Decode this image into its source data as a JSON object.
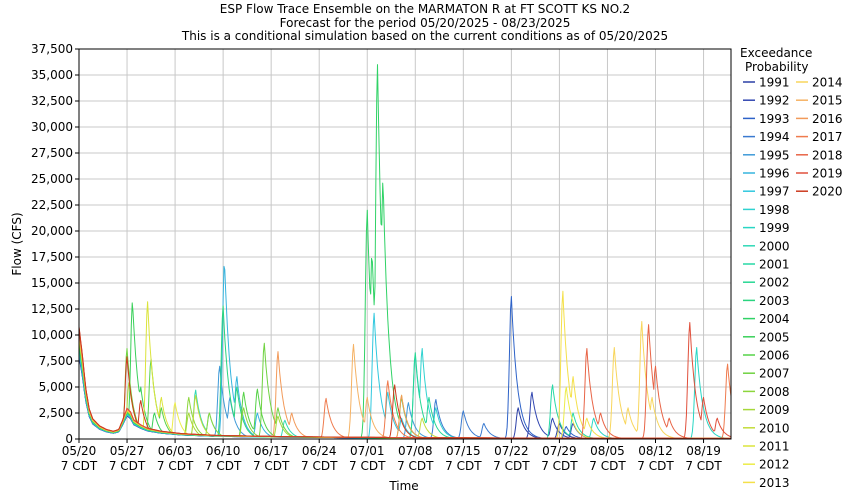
{
  "chart_data": {
    "type": "line",
    "title": "ESP Flow Trace Ensemble on the MARMATON R at FT SCOTT KS NO.2",
    "subtitle": "Forecast for the period 05/20/2025 - 08/23/2025",
    "subtitle2": "This is a conditional simulation based on the current conditions as of 05/20/2025",
    "xlabel": "Time",
    "ylabel": "Flow (CFS)",
    "ylim": [
      0,
      37500
    ],
    "xlim": [
      0,
      95
    ],
    "grid": true,
    "legend_title_1": "Exceedance",
    "legend_title_2": "Probability",
    "legend_position": "right",
    "y_ticks": [
      0,
      2500,
      5000,
      7500,
      10000,
      12500,
      15000,
      17500,
      20000,
      22500,
      25000,
      27500,
      30000,
      32500,
      35000,
      37500
    ],
    "y_tick_labels": [
      "0",
      "2,500",
      "5,000",
      "7,500",
      "10,000",
      "12,500",
      "15,000",
      "17,500",
      "20,000",
      "22,500",
      "25,000",
      "27,500",
      "30,000",
      "32,500",
      "35,000",
      "37,500"
    ],
    "x_ticks": [
      {
        "day": 0,
        "date": "05/20",
        "time": "7 CDT"
      },
      {
        "day": 7,
        "date": "05/27",
        "time": "7 CDT"
      },
      {
        "day": 14,
        "date": "06/03",
        "time": "7 CDT"
      },
      {
        "day": 21,
        "date": "06/10",
        "time": "7 CDT"
      },
      {
        "day": 28,
        "date": "06/17",
        "time": "7 CDT"
      },
      {
        "day": 35,
        "date": "06/24",
        "time": "7 CDT"
      },
      {
        "day": 42,
        "date": "07/01",
        "time": "7 CDT"
      },
      {
        "day": 49,
        "date": "07/08",
        "time": "7 CDT"
      },
      {
        "day": 56,
        "date": "07/15",
        "time": "7 CDT"
      },
      {
        "day": 63,
        "date": "07/22",
        "time": "7 CDT"
      },
      {
        "day": 70,
        "date": "07/29",
        "time": "7 CDT"
      },
      {
        "day": 77,
        "date": "08/05",
        "time": "7 CDT"
      },
      {
        "day": 84,
        "date": "08/12",
        "time": "7 CDT"
      },
      {
        "day": 91,
        "date": "08/19",
        "time": "7 CDT"
      }
    ],
    "base_trace": [
      [
        0,
        9400
      ],
      [
        0.5,
        7000
      ],
      [
        1,
        4200
      ],
      [
        1.5,
        2500
      ],
      [
        2,
        1700
      ],
      [
        3,
        1100
      ],
      [
        4,
        800
      ],
      [
        5,
        650
      ],
      [
        5.8,
        800
      ],
      [
        6.3,
        1500
      ],
      [
        7,
        2600
      ],
      [
        7.5,
        2300
      ],
      [
        8,
        1600
      ],
      [
        9,
        1200
      ],
      [
        10,
        900
      ],
      [
        12,
        650
      ],
      [
        15,
        450
      ],
      [
        20,
        300
      ],
      [
        30,
        200
      ],
      [
        40,
        150
      ],
      [
        50,
        110
      ],
      [
        60,
        90
      ],
      [
        70,
        70
      ],
      [
        80,
        60
      ],
      [
        95,
        50
      ]
    ],
    "series": [
      {
        "name": "1991",
        "color": "#2b3fa6",
        "peaks": [
          [
            64,
            3000
          ],
          [
            70,
            1500
          ]
        ]
      },
      {
        "name": "1992",
        "color": "#3146b0",
        "peaks": [
          [
            66,
            4500
          ],
          [
            69,
            2000
          ],
          [
            72,
            1500
          ]
        ]
      },
      {
        "name": "1993",
        "color": "#2d62c8",
        "peaks": [
          [
            63,
            13700
          ],
          [
            71,
            1200
          ]
        ]
      },
      {
        "name": "1994",
        "color": "#3a7ad0",
        "peaks": [
          [
            52,
            3800
          ],
          [
            56,
            2700
          ],
          [
            59,
            1500
          ]
        ]
      },
      {
        "name": "1995",
        "color": "#3f9ad8",
        "peaks": [
          [
            20.5,
            7000
          ],
          [
            22,
            4000
          ],
          [
            48,
            3500
          ]
        ]
      },
      {
        "name": "1996",
        "color": "#36b4de",
        "peaks": [
          [
            21.2,
            17200
          ],
          [
            23,
            6000
          ],
          [
            26,
            2500
          ]
        ]
      },
      {
        "name": "1997",
        "color": "#30c8de",
        "peaks": [
          [
            43,
            12100
          ],
          [
            45,
            4500
          ],
          [
            47,
            2000
          ]
        ]
      },
      {
        "name": "1998",
        "color": "#2fd2d0",
        "peaks": [
          [
            49,
            8000
          ],
          [
            50,
            8700
          ],
          [
            52,
            3000
          ]
        ]
      },
      {
        "name": "1999",
        "color": "#29d6c4",
        "peaks": [
          [
            90,
            8800
          ],
          [
            91,
            3000
          ],
          [
            75,
            2000
          ]
        ]
      },
      {
        "name": "2000",
        "color": "#2fd8b6",
        "peaks": [
          [
            17,
            4700
          ],
          [
            19,
            2500
          ],
          [
            30,
            1800
          ]
        ]
      },
      {
        "name": "2001",
        "color": "#27d9a6",
        "peaks": [
          [
            69,
            5200
          ],
          [
            72,
            2500
          ]
        ]
      },
      {
        "name": "2002",
        "color": "#27d794",
        "peaks": [
          [
            49,
            8300
          ],
          [
            51,
            4000
          ]
        ]
      },
      {
        "name": "2003",
        "color": "#2ad47f",
        "peaks": [
          [
            21,
            12800
          ],
          [
            23,
            5000
          ]
        ]
      },
      {
        "name": "2004",
        "color": "#30d266",
        "peaks": [
          [
            42,
            22000
          ],
          [
            42.7,
            18000
          ],
          [
            43.5,
            36000
          ],
          [
            44.3,
            25000
          ],
          [
            45,
            8500
          ],
          [
            47,
            4000
          ]
        ]
      },
      {
        "name": "2005",
        "color": "#3ad05a",
        "peaks": [
          [
            7.8,
            13300
          ],
          [
            9,
            5000
          ],
          [
            11,
            2500
          ]
        ]
      },
      {
        "name": "2006",
        "color": "#56d248",
        "peaks": [
          [
            10.5,
            7700
          ],
          [
            12,
            3000
          ],
          [
            24,
            4500
          ],
          [
            26,
            4800
          ]
        ]
      },
      {
        "name": "2007",
        "color": "#6fd240",
        "peaks": [
          [
            7,
            8700
          ],
          [
            27,
            9200
          ],
          [
            29,
            3000
          ]
        ]
      },
      {
        "name": "2008",
        "color": "#8cd63c",
        "peaks": [
          [
            16,
            4000
          ],
          [
            19,
            2500
          ],
          [
            24,
            3000
          ]
        ]
      },
      {
        "name": "2009",
        "color": "#a6d83a",
        "peaks": [
          [
            7.3,
            5500
          ],
          [
            16,
            2500
          ],
          [
            29,
            2200
          ]
        ]
      },
      {
        "name": "2010",
        "color": "#c3dc3a",
        "peaks": [
          [
            17,
            4200
          ],
          [
            47,
            4200
          ],
          [
            50,
            2000
          ]
        ]
      },
      {
        "name": "2011",
        "color": "#dbe43c",
        "peaks": [
          [
            10,
            13200
          ],
          [
            12,
            4000
          ]
        ]
      },
      {
        "name": "2012",
        "color": "#ecec48",
        "peaks": [
          [
            14,
            3500
          ],
          [
            71,
            5000
          ]
        ]
      },
      {
        "name": "2013",
        "color": "#f4e04a",
        "peaks": [
          [
            70.5,
            14200
          ],
          [
            72,
            6000
          ],
          [
            74,
            2000
          ]
        ]
      },
      {
        "name": "2014",
        "color": "#f8d65c",
        "peaks": [
          [
            78,
            8800
          ],
          [
            80,
            3000
          ],
          [
            82,
            11300
          ],
          [
            83.5,
            4000
          ]
        ]
      },
      {
        "name": "2015",
        "color": "#f5b264",
        "peaks": [
          [
            40,
            9100
          ],
          [
            42,
            4000
          ]
        ]
      },
      {
        "name": "2016",
        "color": "#f29a5a",
        "peaks": [
          [
            29,
            8400
          ],
          [
            31,
            2500
          ],
          [
            47,
            4200
          ]
        ]
      },
      {
        "name": "2017",
        "color": "#ef7b4e",
        "peaks": [
          [
            36,
            3900
          ],
          [
            45,
            5600
          ],
          [
            94.5,
            7200
          ]
        ]
      },
      {
        "name": "2018",
        "color": "#e86446",
        "peaks": [
          [
            74,
            8700
          ],
          [
            76,
            2500
          ],
          [
            83,
            11000
          ],
          [
            84,
            7000
          ],
          [
            86,
            2000
          ]
        ]
      },
      {
        "name": "2019",
        "color": "#e0503c",
        "peaks": [
          [
            89,
            11200
          ],
          [
            91,
            4000
          ],
          [
            93,
            2000
          ]
        ]
      },
      {
        "name": "2020",
        "color": "#cc3a1e",
        "peaks": [
          [
            7,
            7900
          ],
          [
            9,
            3700
          ],
          [
            46,
            5200
          ]
        ]
      }
    ]
  }
}
